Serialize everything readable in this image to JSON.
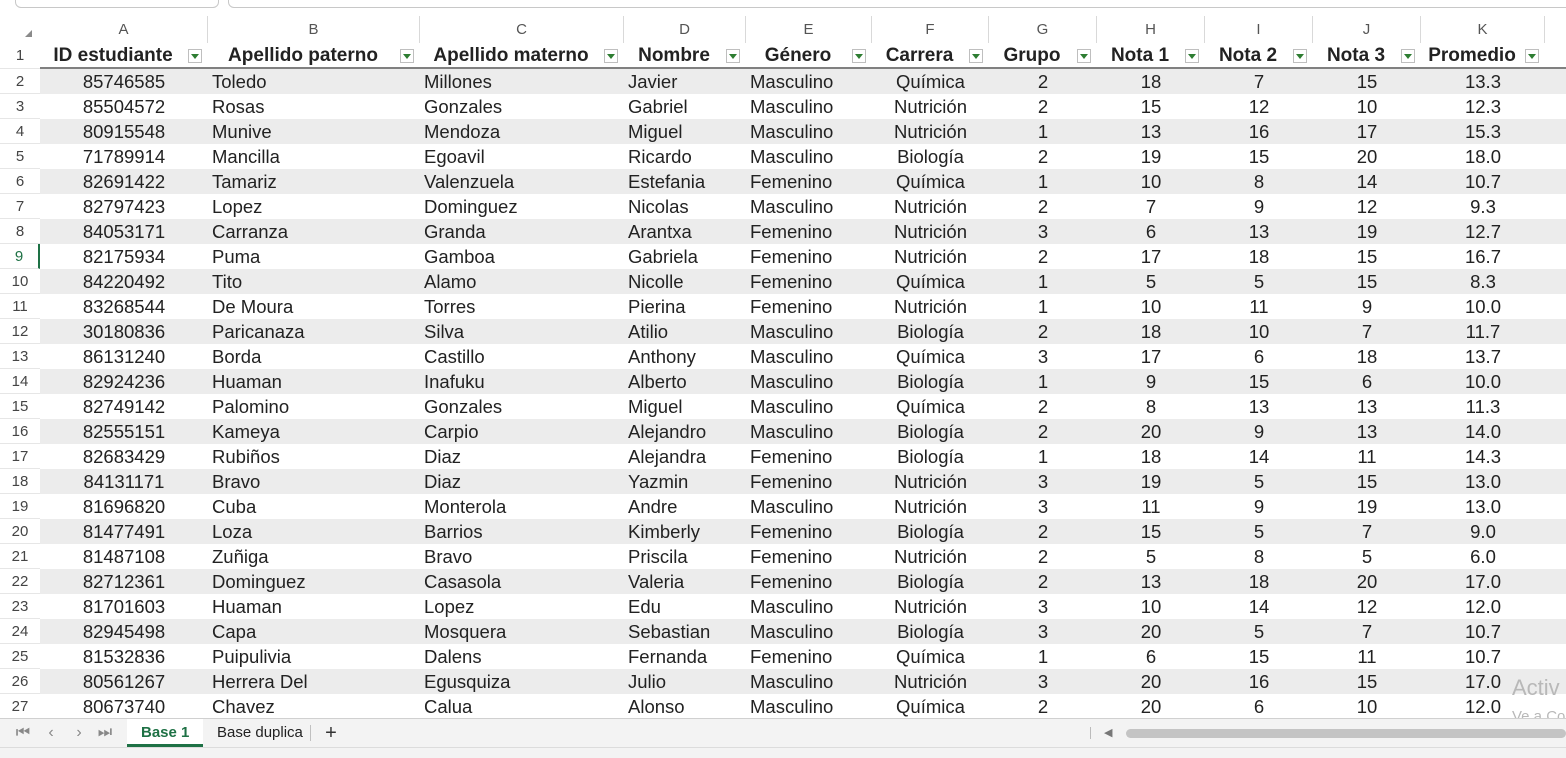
{
  "sheet": {
    "column_letters": [
      "A",
      "B",
      "C",
      "D",
      "E",
      "F",
      "G",
      "H",
      "I",
      "J",
      "K"
    ],
    "headers": [
      "ID estudiante",
      "Apellido paterno",
      "Apellido materno",
      "Nombre",
      "Género",
      "Carrera",
      "Grupo",
      "Nota 1",
      "Nota 2",
      "Nota 3",
      "Promedio"
    ],
    "row_numbers": [
      "1",
      "2",
      "3",
      "4",
      "5",
      "6",
      "7",
      "8",
      "9",
      "10",
      "11",
      "12",
      "13",
      "14",
      "15",
      "16",
      "17",
      "18",
      "19",
      "20",
      "21",
      "22",
      "23",
      "24",
      "25",
      "26",
      "27"
    ],
    "active_row": "9",
    "rows": [
      [
        "85746585",
        "Toledo",
        "Millones",
        "Javier",
        "Masculino",
        "Química",
        "2",
        "18",
        "7",
        "15",
        "13.3"
      ],
      [
        "85504572",
        "Rosas",
        "Gonzales",
        "Gabriel",
        "Masculino",
        "Nutrición",
        "2",
        "15",
        "12",
        "10",
        "12.3"
      ],
      [
        "80915548",
        "Munive",
        "Mendoza",
        "Miguel",
        "Masculino",
        "Nutrición",
        "1",
        "13",
        "16",
        "17",
        "15.3"
      ],
      [
        "71789914",
        "Mancilla",
        "Egoavil",
        "Ricardo",
        "Masculino",
        "Biología",
        "2",
        "19",
        "15",
        "20",
        "18.0"
      ],
      [
        "82691422",
        "Tamariz",
        "Valenzuela",
        "Estefania",
        "Femenino",
        "Química",
        "1",
        "10",
        "8",
        "14",
        "10.7"
      ],
      [
        "82797423",
        "Lopez",
        "Dominguez",
        "Nicolas",
        "Masculino",
        "Nutrición",
        "2",
        "7",
        "9",
        "12",
        "9.3"
      ],
      [
        "84053171",
        "Carranza",
        "Granda",
        "Arantxa",
        "Femenino",
        "Nutrición",
        "3",
        "6",
        "13",
        "19",
        "12.7"
      ],
      [
        "82175934",
        "Puma",
        "Gamboa",
        "Gabriela",
        "Femenino",
        "Nutrición",
        "2",
        "17",
        "18",
        "15",
        "16.7"
      ],
      [
        "84220492",
        "Tito",
        "Alamo",
        "Nicolle",
        "Femenino",
        "Química",
        "1",
        "5",
        "5",
        "15",
        "8.3"
      ],
      [
        "83268544",
        "De Moura",
        "Torres",
        "Pierina",
        "Femenino",
        "Nutrición",
        "1",
        "10",
        "11",
        "9",
        "10.0"
      ],
      [
        "30180836",
        "Paricanaza",
        "Silva",
        "Atilio",
        "Masculino",
        "Biología",
        "2",
        "18",
        "10",
        "7",
        "11.7"
      ],
      [
        "86131240",
        "Borda",
        "Castillo",
        "Anthony",
        "Masculino",
        "Química",
        "3",
        "17",
        "6",
        "18",
        "13.7"
      ],
      [
        "82924236",
        "Huaman",
        "Inafuku",
        "Alberto",
        "Masculino",
        "Biología",
        "1",
        "9",
        "15",
        "6",
        "10.0"
      ],
      [
        "82749142",
        "Palomino",
        "Gonzales",
        "Miguel",
        "Masculino",
        "Química",
        "2",
        "8",
        "13",
        "13",
        "11.3"
      ],
      [
        "82555151",
        "Kameya",
        "Carpio",
        "Alejandro",
        "Masculino",
        "Biología",
        "2",
        "20",
        "9",
        "13",
        "14.0"
      ],
      [
        "82683429",
        "Rubiños",
        "Diaz",
        "Alejandra",
        "Femenino",
        "Biología",
        "1",
        "18",
        "14",
        "11",
        "14.3"
      ],
      [
        "84131171",
        "Bravo",
        "Diaz",
        "Yazmin",
        "Femenino",
        "Nutrición",
        "3",
        "19",
        "5",
        "15",
        "13.0"
      ],
      [
        "81696820",
        "Cuba",
        "Monterola",
        "Andre",
        "Masculino",
        "Nutrición",
        "3",
        "11",
        "9",
        "19",
        "13.0"
      ],
      [
        "81477491",
        "Loza",
        "Barrios",
        "Kimberly",
        "Femenino",
        "Biología",
        "2",
        "15",
        "5",
        "7",
        "9.0"
      ],
      [
        "81487108",
        "Zuñiga",
        "Bravo",
        "Priscila",
        "Femenino",
        "Nutrición",
        "2",
        "5",
        "8",
        "5",
        "6.0"
      ],
      [
        "82712361",
        "Dominguez",
        "Casasola",
        "Valeria",
        "Femenino",
        "Biología",
        "2",
        "13",
        "18",
        "20",
        "17.0"
      ],
      [
        "81701603",
        "Huaman",
        "Lopez",
        "Edu",
        "Masculino",
        "Nutrición",
        "3",
        "10",
        "14",
        "12",
        "12.0"
      ],
      [
        "82945498",
        "Capa",
        "Mosquera",
        "Sebastian",
        "Masculino",
        "Biología",
        "3",
        "20",
        "5",
        "7",
        "10.7"
      ],
      [
        "81532836",
        "Puipulivia",
        "Dalens",
        "Fernanda",
        "Femenino",
        "Química",
        "1",
        "6",
        "15",
        "11",
        "10.7"
      ],
      [
        "80561267",
        "Herrera Del",
        "Egusquiza",
        "Julio",
        "Masculino",
        "Nutrición",
        "3",
        "20",
        "16",
        "15",
        "17.0"
      ],
      [
        "80673740",
        "Chavez",
        "Calua",
        "Alonso",
        "Masculino",
        "Química",
        "2",
        "20",
        "6",
        "10",
        "12.0"
      ]
    ]
  },
  "tabs": [
    {
      "label": "Base 1",
      "active": true
    },
    {
      "label": "Base duplica",
      "active": false
    }
  ],
  "add_sheet_label": "+",
  "nav_icons": [
    "⏮",
    "‹",
    "›",
    "⏭"
  ],
  "watermark": {
    "line1": "Activ",
    "line2": "Ve a Co"
  },
  "colors": {
    "accent": "#1e7145",
    "band": "#ececec",
    "filter_arrow": "#2e7d32"
  }
}
